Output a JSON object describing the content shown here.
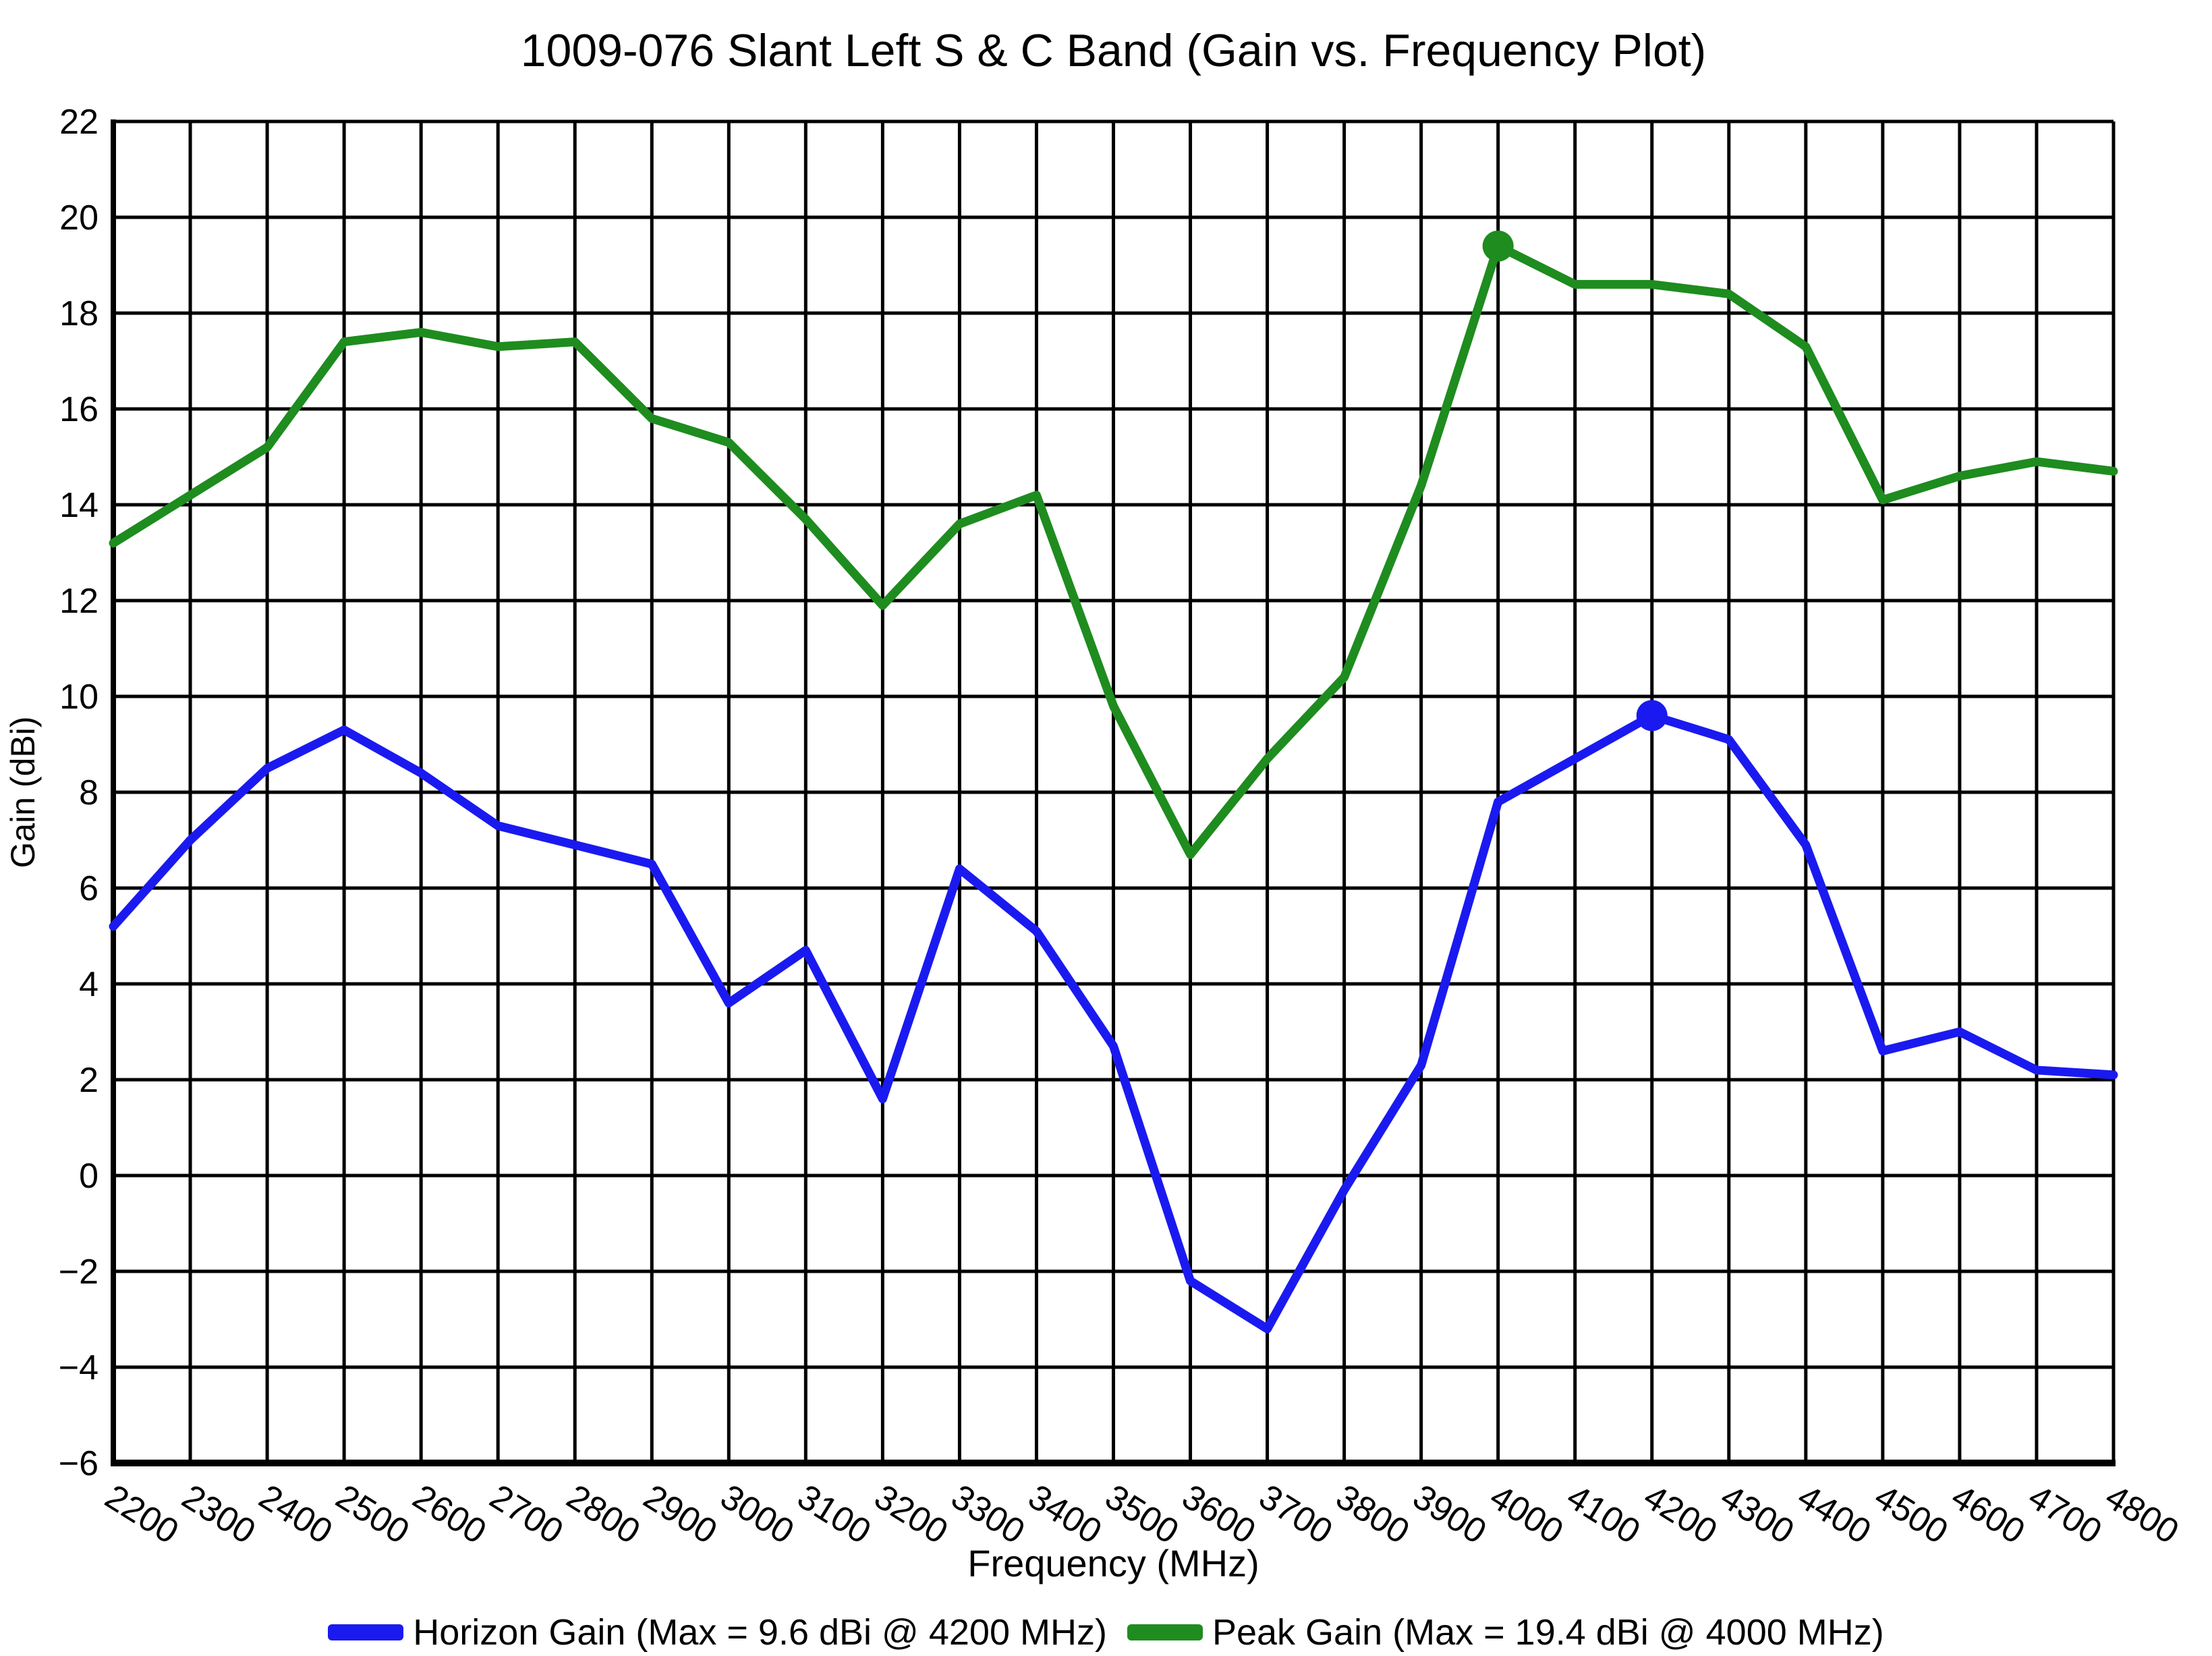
{
  "title": "1009-076 Slant Left S & C Band (Gain vs. Frequency Plot)",
  "chart_data": {
    "type": "line",
    "title": "1009-076 Slant Left S & C Band (Gain vs. Frequency Plot)",
    "xlabel": "Frequency (MHz)",
    "ylabel": "Gain (dBi)",
    "x": [
      2200,
      2300,
      2400,
      2500,
      2600,
      2700,
      2800,
      2900,
      3000,
      3100,
      3200,
      3300,
      3400,
      3500,
      3600,
      3700,
      3800,
      3900,
      4000,
      4100,
      4200,
      4300,
      4400,
      4500,
      4600,
      4700,
      4800
    ],
    "ylim": [
      -6,
      22
    ],
    "ytick_values": [
      22,
      20,
      18,
      16,
      14,
      12,
      10,
      8,
      6,
      4,
      2,
      0,
      -2,
      -4,
      -6
    ],
    "grid": true,
    "legend_position": "bottom",
    "series": [
      {
        "name": "Horizon Gain",
        "legend_label": "Horizon Gain (Max = 9.6 dBi @ 4200 MHz)",
        "color": "#1a1af0",
        "values": [
          5.2,
          7.0,
          8.5,
          9.3,
          8.4,
          7.3,
          6.9,
          6.5,
          3.6,
          4.7,
          1.6,
          6.4,
          5.1,
          2.7,
          -2.2,
          -3.2,
          -0.3,
          2.3,
          7.8,
          8.7,
          9.6,
          9.1,
          6.9,
          2.6,
          3.0,
          2.2,
          2.1
        ],
        "max_marker": {
          "x": 4200,
          "y": 9.6
        }
      },
      {
        "name": "Peak Gain",
        "legend_label": "Peak Gain (Max = 19.4 dBi @ 4000 MHz)",
        "color": "#1e8c1e",
        "values": [
          13.2,
          14.2,
          15.2,
          17.4,
          17.6,
          17.3,
          17.4,
          15.8,
          15.3,
          13.7,
          11.9,
          13.6,
          14.2,
          9.8,
          6.7,
          8.7,
          10.4,
          14.4,
          19.4,
          18.6,
          18.6,
          18.4,
          17.3,
          14.1,
          14.6,
          14.9,
          14.7
        ],
        "max_marker": {
          "x": 4000,
          "y": 19.4
        }
      }
    ],
    "colors": {
      "grid": "#000000",
      "axis": "#000000",
      "background": "#ffffff",
      "text": "#000000"
    }
  }
}
